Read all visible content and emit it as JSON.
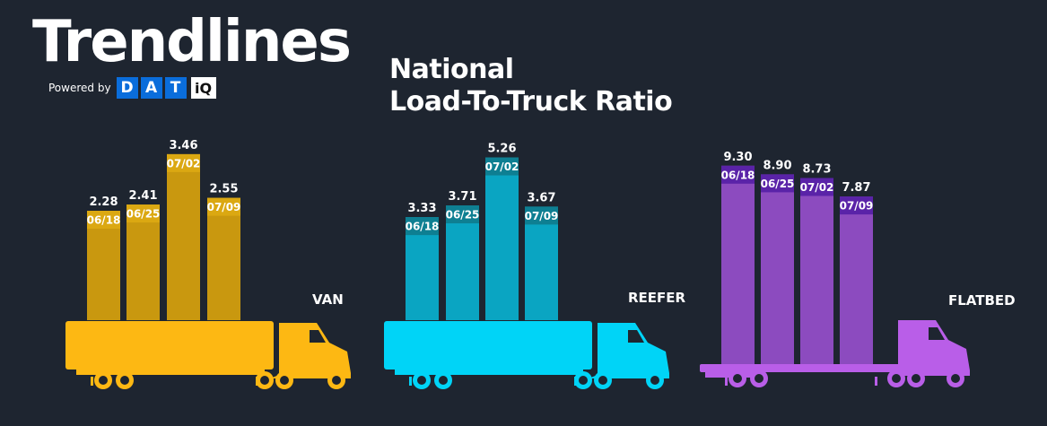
{
  "header": {
    "brand": "Trendlines",
    "powered_by": "Powered by",
    "logo_letters": [
      "D",
      "A",
      "T"
    ],
    "logo_suffix": "iQ",
    "title_line1": "National",
    "title_line2": "Load-To-Truck Ratio"
  },
  "colors": {
    "background": "#1e2530",
    "van": "#fdb813",
    "van_bar": "#c9980f",
    "van_cap": "#dba812",
    "reefer": "#00d4f7",
    "reefer_bar": "#0aa5c2",
    "reefer_cap": "#0e7f92",
    "flatbed": "#b95ee8",
    "flatbed_bar": "#8c4bbf",
    "flatbed_cap": "#5a23a8"
  },
  "chart_data": [
    {
      "type": "bar",
      "trailer": "van",
      "label": "VAN",
      "categories": [
        "06/18",
        "06/25",
        "07/02",
        "07/09"
      ],
      "values": [
        2.28,
        2.41,
        3.46,
        2.55
      ],
      "value_labels": [
        "2.28",
        "2.41",
        "3.46",
        "2.55"
      ]
    },
    {
      "type": "bar",
      "trailer": "reefer",
      "label": "REEFER",
      "categories": [
        "06/18",
        "06/25",
        "07/02",
        "07/09"
      ],
      "values": [
        3.33,
        3.71,
        5.26,
        3.67
      ],
      "value_labels": [
        "3.33",
        "3.71",
        "5.26",
        "3.67"
      ]
    },
    {
      "type": "bar",
      "trailer": "flatbed",
      "label": "FLATBED",
      "categories": [
        "06/18",
        "06/25",
        "07/02",
        "07/09"
      ],
      "values": [
        9.3,
        8.9,
        8.73,
        7.87
      ],
      "value_labels": [
        "9.30",
        "8.90",
        "8.73",
        "7.87"
      ]
    }
  ]
}
